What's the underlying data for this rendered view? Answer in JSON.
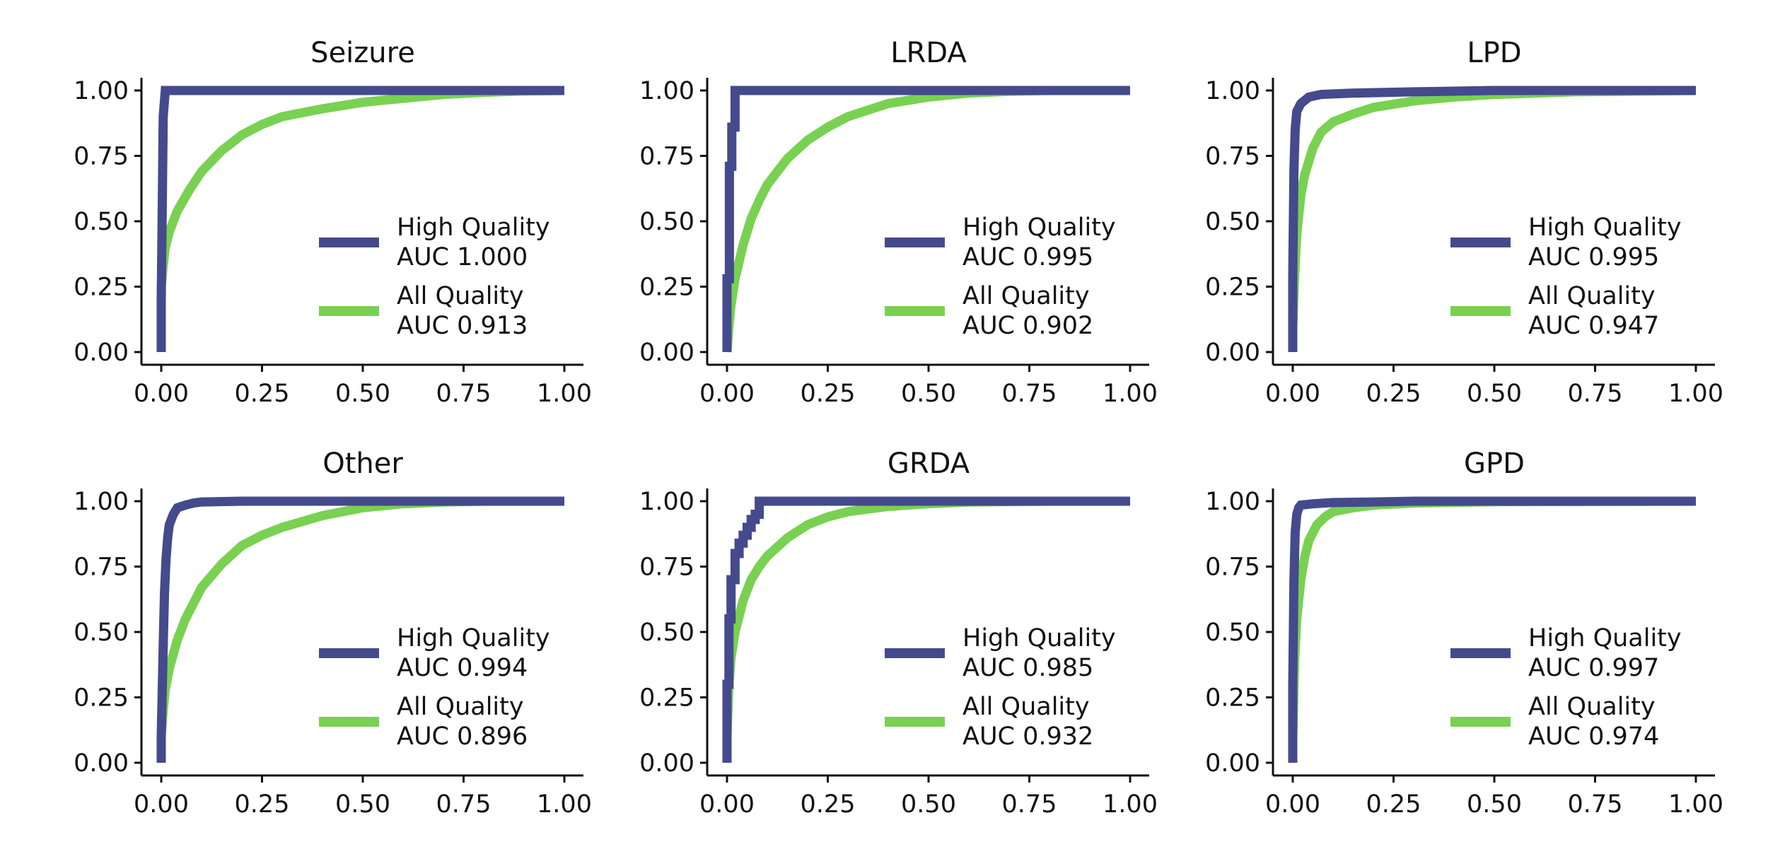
{
  "colors": {
    "high_quality": "#444a8c",
    "all_quality": "#79d151"
  },
  "chart_data": [
    {
      "type": "line",
      "title": "Seizure",
      "xlim": [
        0,
        1
      ],
      "ylim": [
        0,
        1
      ],
      "xticks": [
        "0.00",
        "0.25",
        "0.50",
        "0.75",
        "1.00"
      ],
      "yticks": [
        "0.00",
        "0.25",
        "0.50",
        "0.75",
        "1.00"
      ],
      "legend_placement": "lower-right",
      "series": [
        {
          "name": "High Quality",
          "auc_label": "AUC 1.000",
          "color": "#444a8c",
          "x": [
            0,
            0,
            0.005,
            0.01,
            1.0
          ],
          "y": [
            0,
            0.2,
            0.9,
            1.0,
            1.0
          ]
        },
        {
          "name": "All Quality",
          "auc_label": "AUC 0.913",
          "color": "#79d151",
          "x": [
            0,
            0,
            0.005,
            0.01,
            0.02,
            0.04,
            0.07,
            0.1,
            0.15,
            0.2,
            0.25,
            0.3,
            0.4,
            0.5,
            0.6,
            0.7,
            0.8,
            0.9,
            1.0
          ],
          "y": [
            0,
            0.25,
            0.33,
            0.4,
            0.46,
            0.54,
            0.62,
            0.69,
            0.77,
            0.83,
            0.87,
            0.9,
            0.93,
            0.955,
            0.97,
            0.985,
            0.993,
            0.998,
            1.0
          ]
        }
      ]
    },
    {
      "type": "line",
      "title": "LRDA",
      "xlim": [
        0,
        1
      ],
      "ylim": [
        0,
        1
      ],
      "xticks": [
        "0.00",
        "0.25",
        "0.50",
        "0.75",
        "1.00"
      ],
      "yticks": [
        "0.00",
        "0.25",
        "0.50",
        "0.75",
        "1.00"
      ],
      "legend_placement": "lower-right",
      "series": [
        {
          "name": "High Quality",
          "auc_label": "AUC 0.995",
          "color": "#444a8c",
          "x": [
            0,
            0,
            0.006,
            0.006,
            0.012,
            0.012,
            0.02,
            0.02,
            1.0
          ],
          "y": [
            0,
            0.28,
            0.28,
            0.71,
            0.71,
            0.86,
            0.86,
            1.0,
            1.0
          ]
        },
        {
          "name": "All Quality",
          "auc_label": "AUC 0.902",
          "color": "#79d151",
          "x": [
            0,
            0.005,
            0.01,
            0.02,
            0.04,
            0.06,
            0.08,
            0.1,
            0.15,
            0.2,
            0.25,
            0.3,
            0.4,
            0.5,
            0.6,
            0.7,
            0.8,
            0.9,
            1.0
          ],
          "y": [
            0,
            0.1,
            0.18,
            0.28,
            0.41,
            0.51,
            0.58,
            0.64,
            0.74,
            0.81,
            0.86,
            0.9,
            0.95,
            0.975,
            0.99,
            0.997,
            1.0,
            1.0,
            1.0
          ]
        }
      ]
    },
    {
      "type": "line",
      "title": "LPD",
      "xlim": [
        0,
        1
      ],
      "ylim": [
        0,
        1
      ],
      "xticks": [
        "0.00",
        "0.25",
        "0.50",
        "0.75",
        "1.00"
      ],
      "yticks": [
        "0.00",
        "0.25",
        "0.50",
        "0.75",
        "1.00"
      ],
      "legend_placement": "lower-right",
      "series": [
        {
          "name": "High Quality",
          "auc_label": "AUC 0.995",
          "color": "#444a8c",
          "x": [
            0,
            0,
            0.003,
            0.006,
            0.01,
            0.02,
            0.04,
            0.07,
            0.15,
            0.3,
            0.5,
            1.0
          ],
          "y": [
            0,
            0.3,
            0.7,
            0.85,
            0.92,
            0.95,
            0.975,
            0.985,
            0.99,
            0.995,
            1.0,
            1.0
          ]
        },
        {
          "name": "All Quality",
          "auc_label": "AUC 0.947",
          "color": "#79d151",
          "x": [
            0,
            0,
            0.005,
            0.01,
            0.02,
            0.03,
            0.05,
            0.07,
            0.1,
            0.15,
            0.2,
            0.3,
            0.4,
            0.5,
            0.7,
            1.0
          ],
          "y": [
            0,
            0.1,
            0.3,
            0.45,
            0.6,
            0.68,
            0.78,
            0.84,
            0.88,
            0.91,
            0.935,
            0.96,
            0.975,
            0.985,
            0.995,
            1.0
          ]
        }
      ]
    },
    {
      "type": "line",
      "title": "Other",
      "xlim": [
        0,
        1
      ],
      "ylim": [
        0,
        1
      ],
      "xticks": [
        "0.00",
        "0.25",
        "0.50",
        "0.75",
        "1.00"
      ],
      "yticks": [
        "0.00",
        "0.25",
        "0.50",
        "0.75",
        "1.00"
      ],
      "legend_placement": "lower-right",
      "series": [
        {
          "name": "High Quality",
          "auc_label": "AUC 0.994",
          "color": "#444a8c",
          "x": [
            0,
            0,
            0.005,
            0.008,
            0.012,
            0.016,
            0.02,
            0.03,
            0.04,
            0.06,
            0.08,
            0.1,
            0.2,
            0.4,
            1.0
          ],
          "y": [
            0,
            0.1,
            0.45,
            0.65,
            0.78,
            0.86,
            0.91,
            0.95,
            0.975,
            0.985,
            0.993,
            0.997,
            1.0,
            1.0,
            1.0
          ]
        },
        {
          "name": "All Quality",
          "auc_label": "AUC 0.896",
          "color": "#79d151",
          "x": [
            0,
            0,
            0.005,
            0.01,
            0.02,
            0.04,
            0.06,
            0.08,
            0.1,
            0.15,
            0.2,
            0.25,
            0.3,
            0.4,
            0.5,
            0.6,
            0.7,
            0.8,
            1.0
          ],
          "y": [
            0,
            0.1,
            0.2,
            0.28,
            0.36,
            0.47,
            0.55,
            0.61,
            0.67,
            0.76,
            0.83,
            0.87,
            0.9,
            0.945,
            0.975,
            0.99,
            0.997,
            1.0,
            1.0
          ]
        }
      ]
    },
    {
      "type": "line",
      "title": "GRDA",
      "xlim": [
        0,
        1
      ],
      "ylim": [
        0,
        1
      ],
      "xticks": [
        "0.00",
        "0.25",
        "0.50",
        "0.75",
        "1.00"
      ],
      "yticks": [
        "0.00",
        "0.25",
        "0.50",
        "0.75",
        "1.00"
      ],
      "legend_placement": "lower-right",
      "series": [
        {
          "name": "High Quality",
          "auc_label": "AUC 0.985",
          "color": "#444a8c",
          "x": [
            0,
            0,
            0.005,
            0.005,
            0.01,
            0.01,
            0.02,
            0.02,
            0.03,
            0.03,
            0.04,
            0.04,
            0.05,
            0.05,
            0.06,
            0.06,
            0.07,
            0.07,
            0.08,
            0.08,
            1.0
          ],
          "y": [
            0,
            0.3,
            0.3,
            0.55,
            0.55,
            0.7,
            0.7,
            0.8,
            0.8,
            0.84,
            0.84,
            0.87,
            0.87,
            0.9,
            0.9,
            0.93,
            0.93,
            0.95,
            0.95,
            1.0,
            1.0
          ]
        },
        {
          "name": "All Quality",
          "auc_label": "AUC 0.932",
          "color": "#79d151",
          "x": [
            0,
            0,
            0.005,
            0.01,
            0.02,
            0.04,
            0.06,
            0.08,
            0.1,
            0.15,
            0.2,
            0.25,
            0.3,
            0.4,
            0.5,
            0.6,
            0.8,
            1.0
          ],
          "y": [
            0,
            0.1,
            0.3,
            0.4,
            0.5,
            0.62,
            0.7,
            0.75,
            0.79,
            0.86,
            0.91,
            0.94,
            0.96,
            0.98,
            0.99,
            0.997,
            1.0,
            1.0
          ]
        }
      ]
    },
    {
      "type": "line",
      "title": "GPD",
      "xlim": [
        0,
        1
      ],
      "ylim": [
        0,
        1
      ],
      "xticks": [
        "0.00",
        "0.25",
        "0.50",
        "0.75",
        "1.00"
      ],
      "yticks": [
        "0.00",
        "0.25",
        "0.50",
        "0.75",
        "1.00"
      ],
      "legend_placement": "lower-right",
      "series": [
        {
          "name": "High Quality",
          "auc_label": "AUC 0.997",
          "color": "#444a8c",
          "x": [
            0,
            0,
            0.003,
            0.006,
            0.01,
            0.015,
            0.02,
            0.05,
            0.1,
            0.2,
            0.3,
            1.0
          ],
          "y": [
            0,
            0.3,
            0.7,
            0.88,
            0.95,
            0.975,
            0.985,
            0.99,
            0.995,
            0.997,
            1.0,
            1.0
          ]
        },
        {
          "name": "All Quality",
          "auc_label": "AUC 0.974",
          "color": "#79d151",
          "x": [
            0,
            0,
            0.005,
            0.01,
            0.02,
            0.03,
            0.04,
            0.06,
            0.08,
            0.1,
            0.15,
            0.2,
            0.3,
            0.5,
            1.0
          ],
          "y": [
            0,
            0.1,
            0.4,
            0.55,
            0.7,
            0.79,
            0.85,
            0.91,
            0.94,
            0.96,
            0.975,
            0.985,
            0.993,
            0.998,
            1.0
          ]
        }
      ]
    }
  ]
}
